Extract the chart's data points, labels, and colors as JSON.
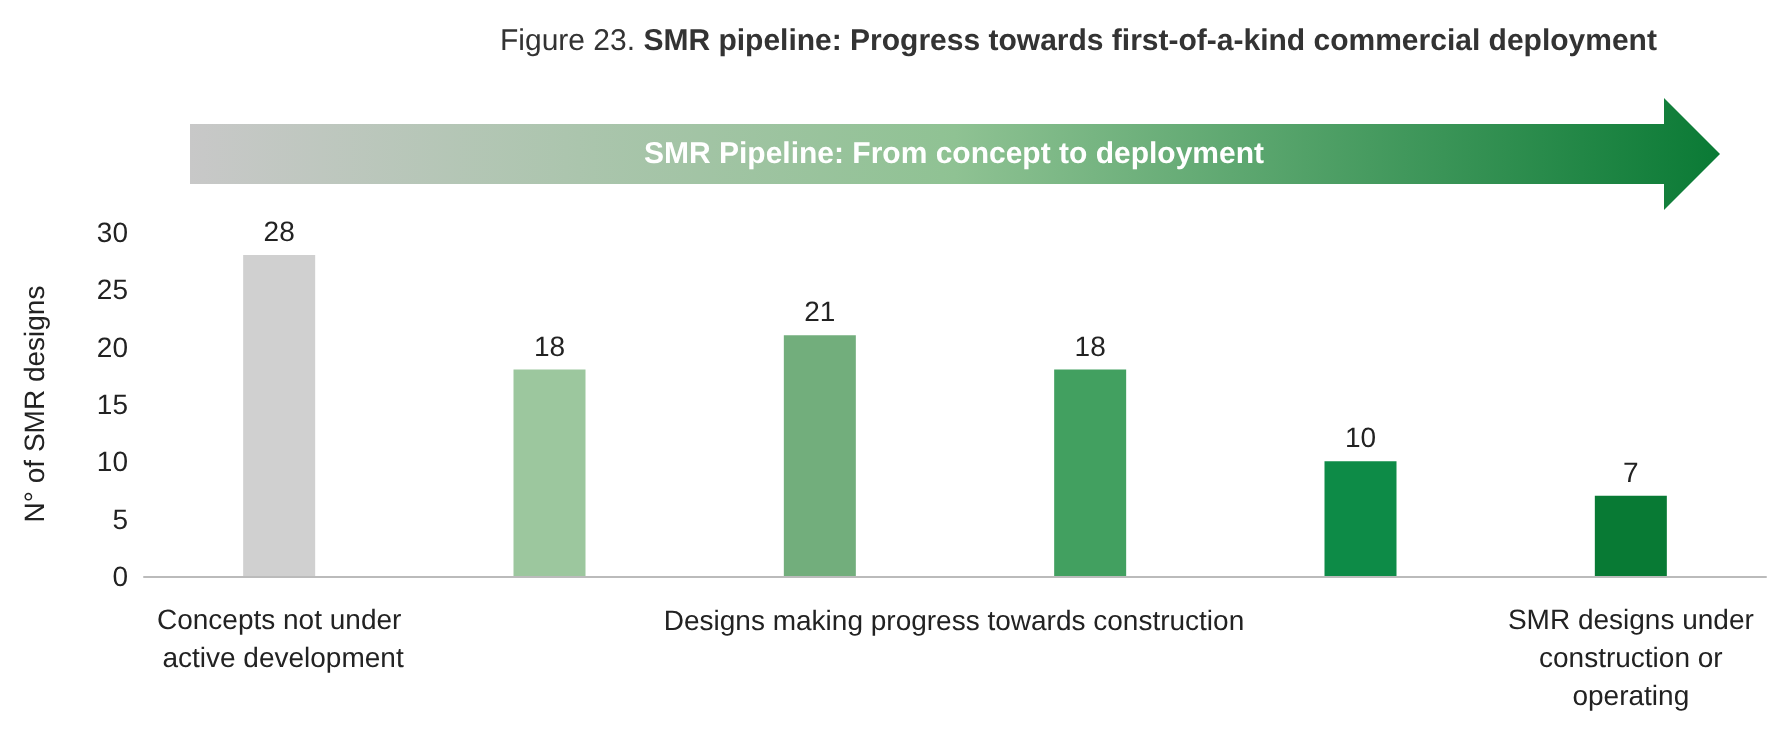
{
  "chart_data": {
    "type": "bar",
    "title": "Figure 23. SMR pipeline: Progress towards first-of-a-kind commercial deployment",
    "ylabel": "N° of SMR designs",
    "categories": [
      "Concepts not under active development",
      null,
      null,
      null,
      null,
      "SMR designs under construction or operating"
    ],
    "values": [
      28,
      18,
      21,
      18,
      10,
      7
    ],
    "colors": [
      "#d0d0d0",
      "#9cc79e",
      "#72ae7c",
      "#42a060",
      "#0d8b47",
      "#087a34"
    ],
    "ylim": [
      0,
      30
    ],
    "yticks": [
      0,
      5,
      10,
      15,
      20,
      25,
      30
    ],
    "grid": false,
    "data_labels": true,
    "annotations": [
      "SMR Pipeline: From concept to deployment",
      "Designs making progress towards construction"
    ]
  }
}
